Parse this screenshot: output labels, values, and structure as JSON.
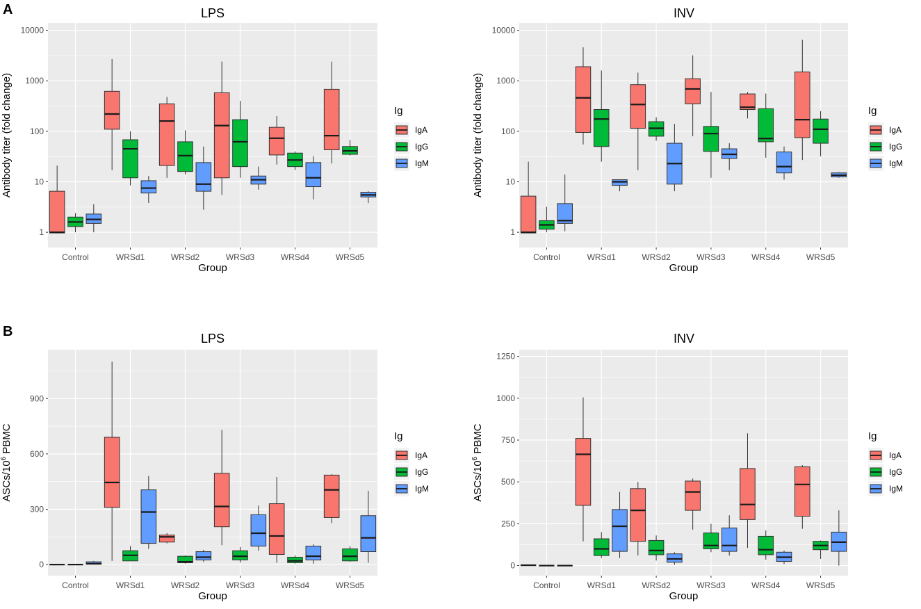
{
  "panel_labels": [
    "A",
    "B"
  ],
  "legend": {
    "title": "Ig",
    "items": [
      {
        "label": "IgA",
        "color": "#F8766D"
      },
      {
        "label": "IgG",
        "color": "#00BA38"
      },
      {
        "label": "IgM",
        "color": "#619CFF"
      }
    ]
  },
  "chart_data": [
    {
      "type": "boxplot",
      "panel": "A",
      "title": "LPS",
      "xlabel": "Group",
      "ylabel": "Antibody titer (fold change)",
      "yscale": "log10",
      "ylim": [
        0.5,
        14000
      ],
      "yticks": [
        1,
        10,
        100,
        1000,
        10000
      ],
      "ytick_labels": [
        "1",
        "10",
        "100",
        "1000",
        "10000"
      ],
      "categories": [
        "Control",
        "WRSd1",
        "WRSd2",
        "WRSd3",
        "WRSd4",
        "WRSd5"
      ],
      "series": [
        {
          "name": "IgA",
          "boxes": [
            {
              "min": 0.95,
              "q1": 0.97,
              "median": 1.0,
              "q3": 6.5,
              "max": 21
            },
            {
              "min": 17,
              "q1": 110,
              "median": 220,
              "q3": 620,
              "max": 2700
            },
            {
              "min": 12,
              "q1": 21,
              "median": 160,
              "q3": 350,
              "max": 480
            },
            {
              "min": 5.5,
              "q1": 12,
              "median": 130,
              "q3": 580,
              "max": 2400
            },
            {
              "min": 22,
              "q1": 34,
              "median": 73,
              "q3": 120,
              "max": 200
            },
            {
              "min": 23,
              "q1": 43,
              "median": 82,
              "q3": 680,
              "max": 2400
            }
          ]
        },
        {
          "name": "IgG",
          "boxes": [
            {
              "min": 1.0,
              "q1": 1.3,
              "median": 1.6,
              "q3": 2.0,
              "max": 2.4
            },
            {
              "min": 8.5,
              "q1": 12,
              "median": 45,
              "q3": 68,
              "max": 100
            },
            {
              "min": 14,
              "q1": 16,
              "median": 33,
              "q3": 62,
              "max": 105
            },
            {
              "min": 12,
              "q1": 20,
              "median": 62,
              "q3": 170,
              "max": 400
            },
            {
              "min": 17,
              "q1": 20,
              "median": 27,
              "q3": 37,
              "max": 40
            },
            {
              "min": 33,
              "q1": 35,
              "median": 41,
              "q3": 50,
              "max": 67
            }
          ]
        },
        {
          "name": "IgM",
          "boxes": [
            {
              "min": 1.0,
              "q1": 1.5,
              "median": 1.8,
              "q3": 2.3,
              "max": 3.6
            },
            {
              "min": 3.8,
              "q1": 6.0,
              "median": 7.5,
              "q3": 10.5,
              "max": 13
            },
            {
              "min": 2.8,
              "q1": 6.5,
              "median": 9.0,
              "q3": 24,
              "max": 50
            },
            {
              "min": 7.0,
              "q1": 9.0,
              "median": 11,
              "q3": 13,
              "max": 20
            },
            {
              "min": 4.5,
              "q1": 8.0,
              "median": 12,
              "q3": 24,
              "max": 32
            },
            {
              "min": 3.8,
              "q1": 5.0,
              "median": 5.5,
              "q3": 6.2,
              "max": 6.5
            }
          ]
        }
      ]
    },
    {
      "type": "boxplot",
      "panel": "A",
      "title": "INV",
      "xlabel": "Group",
      "ylabel": "Antibody titer (fold change)",
      "yscale": "log10",
      "ylim": [
        0.5,
        14000
      ],
      "yticks": [
        1,
        10,
        100,
        1000,
        10000
      ],
      "ytick_labels": [
        "1",
        "10",
        "100",
        "1000",
        "10000"
      ],
      "categories": [
        "Control",
        "WRSd1",
        "WRSd2",
        "WRSd3",
        "WRSd4",
        "WRSd5"
      ],
      "series": [
        {
          "name": "IgA",
          "boxes": [
            {
              "min": 0.95,
              "q1": 0.97,
              "median": 1.0,
              "q3": 5.2,
              "max": 25
            },
            {
              "min": 55,
              "q1": 95,
              "median": 460,
              "q3": 1900,
              "max": 4600
            },
            {
              "min": 17,
              "q1": 115,
              "median": 340,
              "q3": 840,
              "max": 1450
            },
            {
              "min": 80,
              "q1": 350,
              "median": 690,
              "q3": 1100,
              "max": 3200
            },
            {
              "min": 180,
              "q1": 270,
              "median": 300,
              "q3": 550,
              "max": 600
            },
            {
              "min": 27,
              "q1": 75,
              "median": 170,
              "q3": 1500,
              "max": 6500
            }
          ]
        },
        {
          "name": "IgG",
          "boxes": [
            {
              "min": 1.0,
              "q1": 1.15,
              "median": 1.4,
              "q3": 1.7,
              "max": 3.2
            },
            {
              "min": 25,
              "q1": 50,
              "median": 175,
              "q3": 270,
              "max": 1600
            },
            {
              "min": 65,
              "q1": 80,
              "median": 115,
              "q3": 155,
              "max": 190
            },
            {
              "min": 12,
              "q1": 40,
              "median": 90,
              "q3": 125,
              "max": 600
            },
            {
              "min": 30,
              "q1": 62,
              "median": 72,
              "q3": 280,
              "max": 560
            },
            {
              "min": 32,
              "q1": 58,
              "median": 110,
              "q3": 175,
              "max": 250
            }
          ]
        },
        {
          "name": "IgM",
          "boxes": [
            {
              "min": 1.05,
              "q1": 1.5,
              "median": 1.7,
              "q3": 3.7,
              "max": 14
            },
            {
              "min": 6.5,
              "q1": 8.5,
              "median": 10,
              "q3": 11,
              "max": 11
            },
            {
              "min": 6.5,
              "q1": 9.0,
              "median": 23,
              "q3": 58,
              "max": 140
            },
            {
              "min": 17,
              "q1": 29,
              "median": 35,
              "q3": 45,
              "max": 58
            },
            {
              "min": 11,
              "q1": 15,
              "median": 20,
              "q3": 39,
              "max": 50
            },
            {
              "min": 12,
              "q1": 12.5,
              "median": 13.5,
              "q3": 15,
              "max": 15.5
            }
          ]
        }
      ]
    },
    {
      "type": "boxplot",
      "panel": "B",
      "title": "LPS",
      "xlabel": "Group",
      "ylabel_main": "ASCs/10",
      "ylabel_sup": "6",
      "ylabel_suffix": " PBMC",
      "yscale": "linear",
      "ylim": [
        -60,
        1165
      ],
      "yticks": [
        0,
        300,
        600,
        900
      ],
      "ytick_labels": [
        "0",
        "300",
        "600",
        "900"
      ],
      "categories": [
        "Control",
        "WRSd1",
        "WRSd2",
        "WRSd3",
        "WRSd4",
        "WRSd5"
      ],
      "series": [
        {
          "name": "IgA",
          "boxes": [
            {
              "min": 0,
              "q1": 0,
              "median": 0,
              "q3": 0,
              "max": 0
            },
            {
              "min": 20,
              "q1": 310,
              "median": 445,
              "q3": 690,
              "max": 1100
            },
            {
              "min": 115,
              "q1": 122,
              "median": 150,
              "q3": 160,
              "max": 170
            },
            {
              "min": 105,
              "q1": 205,
              "median": 315,
              "q3": 495,
              "max": 730
            },
            {
              "min": 10,
              "q1": 55,
              "median": 155,
              "q3": 330,
              "max": 475
            },
            {
              "min": 225,
              "q1": 255,
              "median": 405,
              "q3": 485,
              "max": 490
            }
          ]
        },
        {
          "name": "IgG",
          "boxes": [
            {
              "min": 0,
              "q1": 0,
              "median": 0,
              "q3": 0,
              "max": 0
            },
            {
              "min": 18,
              "q1": 20,
              "median": 50,
              "q3": 75,
              "max": 100
            },
            {
              "min": 5,
              "q1": 10,
              "median": 15,
              "q3": 45,
              "max": 50
            },
            {
              "min": 10,
              "q1": 25,
              "median": 45,
              "q3": 75,
              "max": 95
            },
            {
              "min": 5,
              "q1": 10,
              "median": 20,
              "q3": 40,
              "max": 50
            },
            {
              "min": 15,
              "q1": 20,
              "median": 45,
              "q3": 85,
              "max": 100
            }
          ]
        },
        {
          "name": "IgM",
          "boxes": [
            {
              "min": 0,
              "q1": 2,
              "median": 5,
              "q3": 15,
              "max": 20
            },
            {
              "min": 85,
              "q1": 115,
              "median": 285,
              "q3": 405,
              "max": 480
            },
            {
              "min": 15,
              "q1": 25,
              "median": 40,
              "q3": 70,
              "max": 80
            },
            {
              "min": 75,
              "q1": 100,
              "median": 170,
              "q3": 270,
              "max": 320
            },
            {
              "min": 5,
              "q1": 25,
              "median": 45,
              "q3": 100,
              "max": 110
            },
            {
              "min": 10,
              "q1": 70,
              "median": 145,
              "q3": 265,
              "max": 400
            }
          ]
        }
      ]
    },
    {
      "type": "boxplot",
      "panel": "B",
      "title": "INV",
      "xlabel": "Group",
      "ylabel_main": "ASCs/10",
      "ylabel_sup": "6",
      "ylabel_suffix": " PBMC",
      "yscale": "linear",
      "ylim": [
        -60,
        1290
      ],
      "yticks": [
        0,
        250,
        500,
        750,
        1000,
        1250
      ],
      "ytick_labels": [
        "0",
        "250",
        "500",
        "750",
        "1000",
        "1250"
      ],
      "categories": [
        "Control",
        "WRSd1",
        "WRSd2",
        "WRSd3",
        "WRSd4",
        "WRSd5"
      ],
      "series": [
        {
          "name": "IgA",
          "boxes": [
            {
              "min": 0,
              "q1": 0,
              "median": 2,
              "q3": 5,
              "max": 5
            },
            {
              "min": 145,
              "q1": 360,
              "median": 665,
              "q3": 760,
              "max": 1005
            },
            {
              "min": 60,
              "q1": 145,
              "median": 330,
              "q3": 460,
              "max": 500
            },
            {
              "min": 215,
              "q1": 330,
              "median": 440,
              "q3": 505,
              "max": 520
            },
            {
              "min": 105,
              "q1": 275,
              "median": 365,
              "q3": 580,
              "max": 790
            },
            {
              "min": 220,
              "q1": 295,
              "median": 485,
              "q3": 590,
              "max": 600
            }
          ]
        },
        {
          "name": "IgG",
          "boxes": [
            {
              "min": 0,
              "q1": 0,
              "median": 0,
              "q3": 0,
              "max": 0
            },
            {
              "min": 45,
              "q1": 60,
              "median": 100,
              "q3": 160,
              "max": 200
            },
            {
              "min": 30,
              "q1": 65,
              "median": 90,
              "q3": 150,
              "max": 180
            },
            {
              "min": 80,
              "q1": 100,
              "median": 120,
              "q3": 195,
              "max": 250
            },
            {
              "min": 35,
              "q1": 65,
              "median": 95,
              "q3": 175,
              "max": 210
            },
            {
              "min": 40,
              "q1": 95,
              "median": 120,
              "q3": 145,
              "max": 150
            }
          ]
        },
        {
          "name": "IgM",
          "boxes": [
            {
              "min": 0,
              "q1": 0,
              "median": 0,
              "q3": 0,
              "max": 0
            },
            {
              "min": 45,
              "q1": 85,
              "median": 235,
              "q3": 335,
              "max": 440
            },
            {
              "min": 5,
              "q1": 20,
              "median": 40,
              "q3": 70,
              "max": 80
            },
            {
              "min": 60,
              "q1": 85,
              "median": 120,
              "q3": 225,
              "max": 300
            },
            {
              "min": 10,
              "q1": 25,
              "median": 50,
              "q3": 80,
              "max": 90
            },
            {
              "min": 0,
              "q1": 85,
              "median": 140,
              "q3": 200,
              "max": 330
            }
          ]
        }
      ]
    }
  ]
}
